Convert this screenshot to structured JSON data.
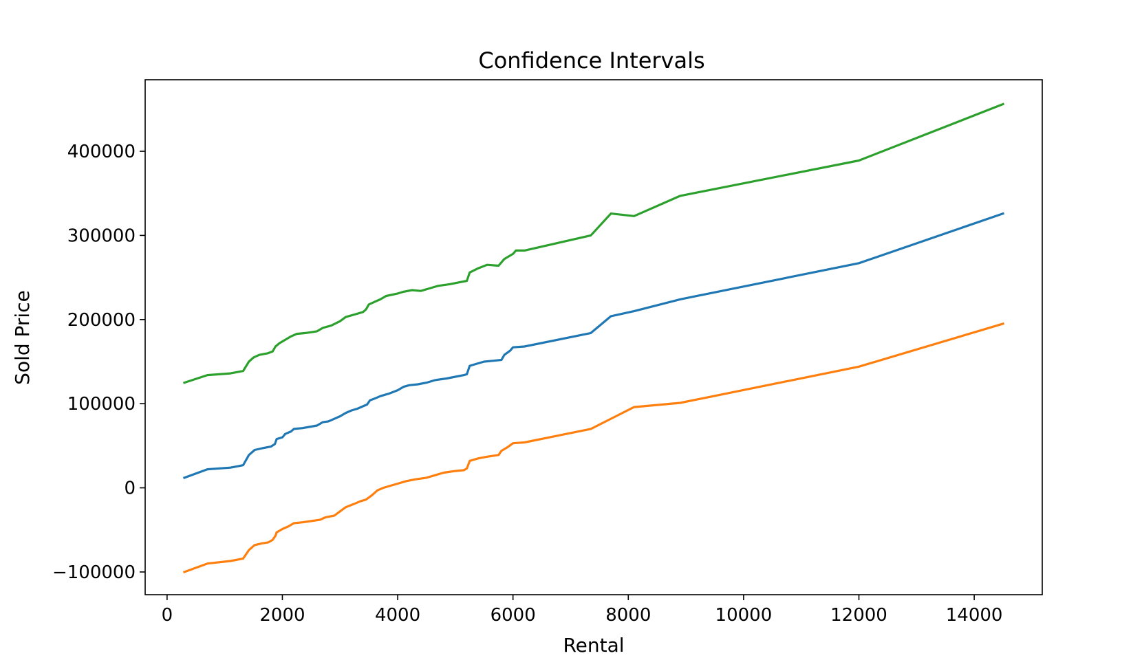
{
  "chart_data": {
    "type": "line",
    "title": "Confidence Intervals",
    "xlabel": "Rental",
    "ylabel": "Sold Price",
    "xlim": [
      -380,
      15180
    ],
    "ylim": [
      -127000,
      485000
    ],
    "x_ticks": [
      0,
      2000,
      4000,
      6000,
      8000,
      10000,
      12000,
      14000
    ],
    "x_tick_labels": [
      "0",
      "2000",
      "4000",
      "6000",
      "8000",
      "10000",
      "12000",
      "14000"
    ],
    "y_ticks": [
      -100000,
      0,
      100000,
      200000,
      300000,
      400000
    ],
    "y_tick_labels": [
      "−100000",
      "0",
      "100000",
      "200000",
      "300000",
      "400000"
    ],
    "grid": false,
    "legend": "none",
    "series": [
      {
        "color": "#1f77b4",
        "points": [
          [
            300,
            12000
          ],
          [
            700,
            22000
          ],
          [
            1100,
            24000
          ],
          [
            1250,
            26000
          ],
          [
            1320,
            27000
          ],
          [
            1420,
            39000
          ],
          [
            1520,
            45000
          ],
          [
            1650,
            47000
          ],
          [
            1800,
            49000
          ],
          [
            1870,
            52000
          ],
          [
            1900,
            58000
          ],
          [
            2000,
            60000
          ],
          [
            2050,
            64000
          ],
          [
            2150,
            67000
          ],
          [
            2200,
            70000
          ],
          [
            2350,
            71000
          ],
          [
            2600,
            74000
          ],
          [
            2700,
            78000
          ],
          [
            2800,
            79000
          ],
          [
            2900,
            82000
          ],
          [
            3000,
            85000
          ],
          [
            3100,
            89000
          ],
          [
            3200,
            92000
          ],
          [
            3300,
            94000
          ],
          [
            3400,
            97000
          ],
          [
            3470,
            99000
          ],
          [
            3520,
            104000
          ],
          [
            3600,
            106000
          ],
          [
            3700,
            109000
          ],
          [
            3850,
            112000
          ],
          [
            4000,
            116000
          ],
          [
            4100,
            120000
          ],
          [
            4200,
            122000
          ],
          [
            4350,
            123000
          ],
          [
            4500,
            125000
          ],
          [
            4650,
            128000
          ],
          [
            4850,
            130000
          ],
          [
            5000,
            132000
          ],
          [
            5150,
            134000
          ],
          [
            5200,
            135000
          ],
          [
            5250,
            145000
          ],
          [
            5400,
            148000
          ],
          [
            5500,
            150000
          ],
          [
            5650,
            151000
          ],
          [
            5800,
            152000
          ],
          [
            5850,
            158000
          ],
          [
            5950,
            163000
          ],
          [
            6000,
            167000
          ],
          [
            6200,
            168000
          ],
          [
            7350,
            184000
          ],
          [
            7700,
            204000
          ],
          [
            8100,
            210000
          ],
          [
            8900,
            224000
          ],
          [
            12000,
            267000
          ],
          [
            14500,
            326000
          ]
        ]
      },
      {
        "color": "#ff7f0e",
        "points": [
          [
            300,
            -100000
          ],
          [
            700,
            -90000
          ],
          [
            1100,
            -87000
          ],
          [
            1250,
            -85000
          ],
          [
            1320,
            -84000
          ],
          [
            1420,
            -74000
          ],
          [
            1520,
            -68000
          ],
          [
            1650,
            -66000
          ],
          [
            1750,
            -65000
          ],
          [
            1830,
            -62000
          ],
          [
            1880,
            -57000
          ],
          [
            1900,
            -53000
          ],
          [
            2000,
            -49000
          ],
          [
            2100,
            -46000
          ],
          [
            2200,
            -42000
          ],
          [
            2350,
            -41000
          ],
          [
            2450,
            -40000
          ],
          [
            2650,
            -38000
          ],
          [
            2750,
            -35000
          ],
          [
            2900,
            -33000
          ],
          [
            3000,
            -28000
          ],
          [
            3100,
            -23000
          ],
          [
            3250,
            -19000
          ],
          [
            3350,
            -16000
          ],
          [
            3450,
            -14000
          ],
          [
            3550,
            -9000
          ],
          [
            3650,
            -3000
          ],
          [
            3750,
            0
          ],
          [
            3850,
            2000
          ],
          [
            4000,
            5000
          ],
          [
            4150,
            8000
          ],
          [
            4300,
            10000
          ],
          [
            4500,
            12000
          ],
          [
            4650,
            15000
          ],
          [
            4800,
            18000
          ],
          [
            5000,
            20000
          ],
          [
            5150,
            21000
          ],
          [
            5200,
            23000
          ],
          [
            5250,
            32000
          ],
          [
            5400,
            35000
          ],
          [
            5550,
            37000
          ],
          [
            5750,
            39000
          ],
          [
            5800,
            44000
          ],
          [
            5900,
            48000
          ],
          [
            6000,
            53000
          ],
          [
            6200,
            54000
          ],
          [
            7350,
            70000
          ],
          [
            8100,
            96000
          ],
          [
            8900,
            101000
          ],
          [
            12000,
            144000
          ],
          [
            14500,
            195000
          ]
        ]
      },
      {
        "color": "#2ca02c",
        "points": [
          [
            300,
            125000
          ],
          [
            700,
            134000
          ],
          [
            1100,
            136000
          ],
          [
            1250,
            138000
          ],
          [
            1320,
            139000
          ],
          [
            1420,
            150000
          ],
          [
            1500,
            155000
          ],
          [
            1600,
            158000
          ],
          [
            1750,
            160000
          ],
          [
            1830,
            162000
          ],
          [
            1880,
            168000
          ],
          [
            1950,
            172000
          ],
          [
            2050,
            176000
          ],
          [
            2150,
            180000
          ],
          [
            2250,
            183000
          ],
          [
            2400,
            184000
          ],
          [
            2600,
            186000
          ],
          [
            2700,
            190000
          ],
          [
            2850,
            193000
          ],
          [
            3000,
            198000
          ],
          [
            3100,
            203000
          ],
          [
            3250,
            206000
          ],
          [
            3400,
            209000
          ],
          [
            3450,
            212000
          ],
          [
            3500,
            218000
          ],
          [
            3600,
            221000
          ],
          [
            3700,
            224000
          ],
          [
            3800,
            228000
          ],
          [
            4000,
            231000
          ],
          [
            4100,
            233000
          ],
          [
            4250,
            235000
          ],
          [
            4400,
            234000
          ],
          [
            4550,
            237000
          ],
          [
            4700,
            240000
          ],
          [
            4900,
            242000
          ],
          [
            5050,
            244000
          ],
          [
            5200,
            246000
          ],
          [
            5250,
            256000
          ],
          [
            5400,
            261000
          ],
          [
            5550,
            265000
          ],
          [
            5750,
            264000
          ],
          [
            5850,
            272000
          ],
          [
            6000,
            278000
          ],
          [
            6050,
            282000
          ],
          [
            6200,
            282000
          ],
          [
            7350,
            300000
          ],
          [
            7700,
            326000
          ],
          [
            8100,
            323000
          ],
          [
            8900,
            347000
          ],
          [
            12000,
            389000
          ],
          [
            14500,
            456000
          ]
        ]
      }
    ]
  }
}
